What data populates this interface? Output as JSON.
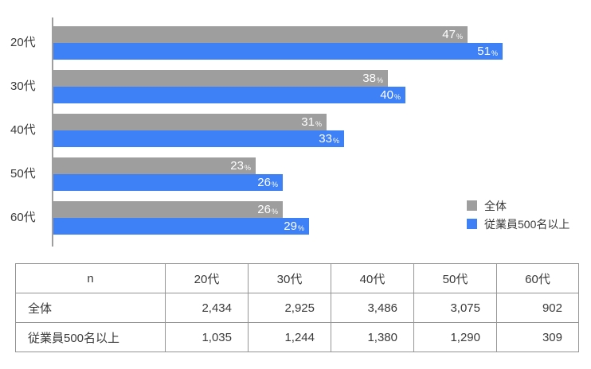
{
  "colors": {
    "overall": "#9e9e9e",
    "large_company": "#3e80f6",
    "axis": "#9e9e9e",
    "table_border": "#949494",
    "text": "#3a3a3a",
    "bar_label": "#ffffff"
  },
  "chart_data": {
    "type": "bar",
    "orientation": "horizontal",
    "title": "",
    "categories": [
      "20代",
      "30代",
      "40代",
      "50代",
      "60代"
    ],
    "series": [
      {
        "name": "全体",
        "color": "#9e9e9e",
        "values": [
          47,
          38,
          31,
          23,
          26
        ]
      },
      {
        "name": "従業員500名以上",
        "color": "#3e80f6",
        "values": [
          51,
          40,
          33,
          26,
          29
        ]
      }
    ],
    "unit": "%",
    "xlim": [
      0,
      61
    ],
    "grid": false,
    "legend_position": "bottom-right",
    "value_labels": "inside-end"
  },
  "legend": {
    "items": [
      {
        "label": "全体"
      },
      {
        "label": "従業員500名以上"
      }
    ]
  },
  "table": {
    "header": [
      "n",
      "20代",
      "30代",
      "40代",
      "50代",
      "60代"
    ],
    "rows": [
      {
        "label": "全体",
        "values": [
          "2,434",
          "2,925",
          "3,486",
          "3,075",
          "902"
        ]
      },
      {
        "label": "従業員500名以上",
        "values": [
          "1,035",
          "1,244",
          "1,380",
          "1,290",
          "309"
        ]
      }
    ]
  }
}
